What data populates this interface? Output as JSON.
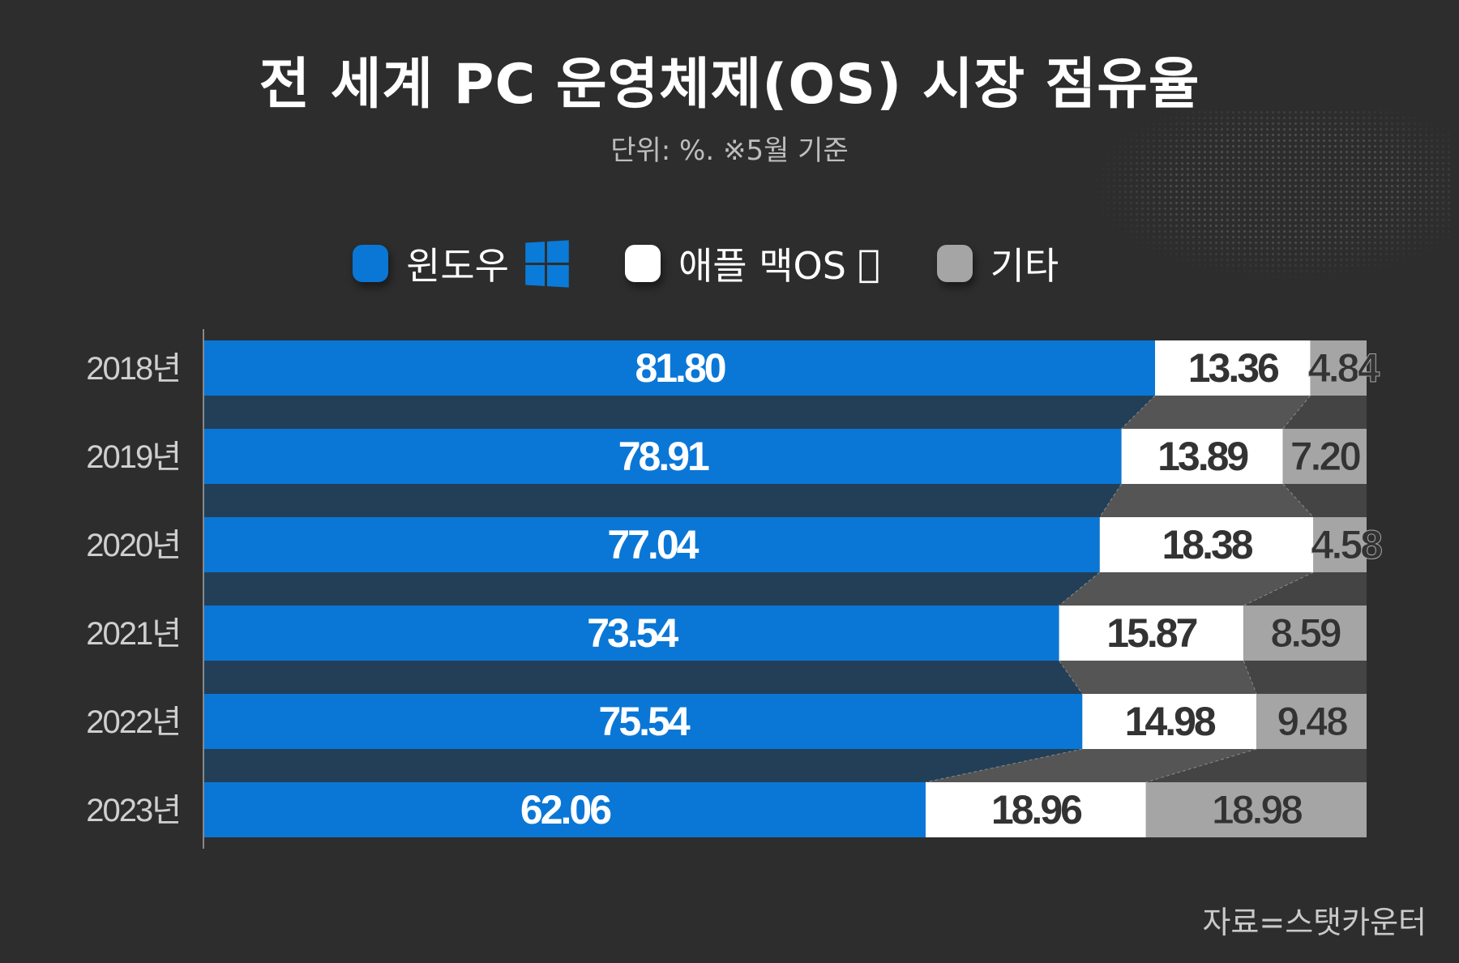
{
  "title": "전 세계 PC 운영체제(OS) 시장 점유율",
  "subtitle": "단위: %. ※5월 기준",
  "source": "자료=스탯카운터",
  "colors": {
    "windows": "#0a77d6",
    "mac": "#ffffff",
    "other": "#a5a5a5",
    "background": "#2d2d2d"
  },
  "chart_data": {
    "type": "bar",
    "stacked": true,
    "orientation": "horizontal",
    "title": "전 세계 PC 운영체제(OS) 시장 점유율",
    "categories": [
      "2018년",
      "2019년",
      "2020년",
      "2021년",
      "2022년",
      "2023년"
    ],
    "series": [
      {
        "name": "윈도우",
        "values": [
          81.8,
          78.91,
          77.04,
          73.54,
          75.54,
          62.06
        ],
        "labels": [
          "81.80",
          "78.91",
          "77.04",
          "73.54",
          "75.54",
          "62.06"
        ]
      },
      {
        "name": "애플 맥OS",
        "values": [
          13.36,
          13.89,
          18.38,
          15.87,
          14.98,
          18.96
        ],
        "labels": [
          "13.36",
          "13.89",
          "18.38",
          "15.87",
          "14.98",
          "18.96"
        ]
      },
      {
        "name": "기타",
        "values": [
          4.84,
          7.2,
          4.58,
          8.59,
          9.48,
          18.98
        ],
        "labels": [
          "4.84",
          "7.20",
          "4.58",
          "8.59",
          "9.48",
          "18.98"
        ]
      }
    ],
    "xlim": [
      0,
      100
    ],
    "legend_position": "top-center",
    "unit": "%"
  }
}
